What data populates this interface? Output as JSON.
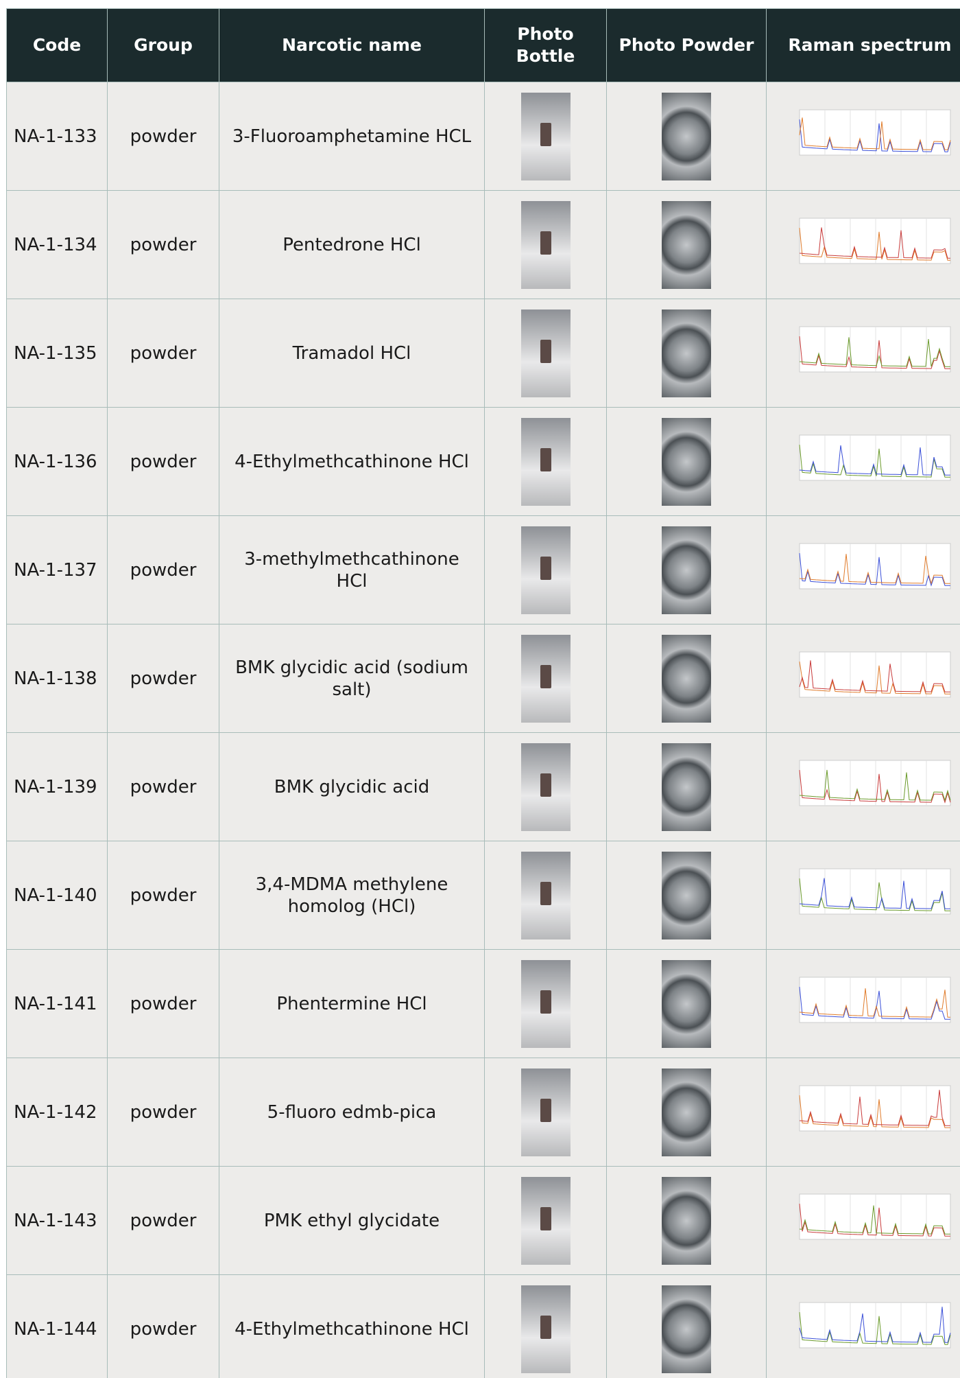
{
  "table": {
    "header": [
      "Code",
      "Group",
      "Narcotic name",
      "Photo Bottle",
      "Photo Powder",
      "Raman spectrum"
    ],
    "rows": [
      [
        "NA-1-133",
        "powder",
        "3-Fluoroamphetamine HCL"
      ],
      [
        "NA-1-134",
        "powder",
        "Pentedrone HCl"
      ],
      [
        "NA-1-135",
        "powder",
        "Tramadol HCl"
      ],
      [
        "NA-1-136",
        "powder",
        "4-Ethylmethcathinone HCl"
      ],
      [
        "NA-1-137",
        "powder",
        "3-methylmethcathinone HCl"
      ],
      [
        "NA-1-138",
        "powder",
        "BMK glycidic acid (sodium salt)"
      ],
      [
        "NA-1-139",
        "powder",
        "BMK glycidic acid"
      ],
      [
        "NA-1-140",
        "powder",
        "3,4-MDMA methylene homolog (HCl)"
      ],
      [
        "NA-1-141",
        "powder",
        "Phentermine HCl"
      ],
      [
        "NA-1-142",
        "powder",
        "5-fluoro edmb-pica"
      ],
      [
        "NA-1-143",
        "powder",
        "PMK ethyl glycidate"
      ],
      [
        "NA-1-144",
        "powder",
        "4-Ethylmethcathinone HCl"
      ]
    ]
  }
}
